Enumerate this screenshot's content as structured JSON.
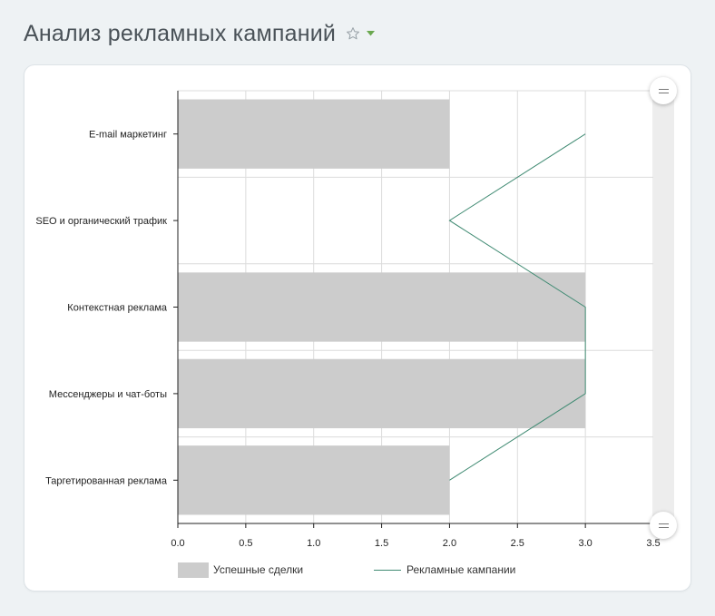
{
  "page": {
    "title": "Анализ рекламных кампаний",
    "star_icon": "star-outline-icon",
    "dropdown_icon": "chevron-down-icon",
    "accent_color": "#6aa84f"
  },
  "chart_data": {
    "type": "bar",
    "orientation": "horizontal",
    "title": "",
    "xlabel": "",
    "ylabel": "",
    "categories": [
      "E-mail маркетинг",
      "SEO и органический трафик",
      "Контекстная реклама",
      "Мессенджеры и чат-боты",
      "Таргетированная реклама"
    ],
    "series": [
      {
        "name": "Успешные сделки",
        "type": "bar",
        "color": "#cccccc",
        "values": [
          2,
          0,
          3,
          3,
          2
        ]
      },
      {
        "name": "Рекламные кампании",
        "type": "line",
        "color": "#3f8a72",
        "values": [
          3,
          2,
          3,
          3,
          2
        ]
      }
    ],
    "xlim": [
      0,
      3.5
    ],
    "xticks": [
      "0.0",
      "0.5",
      "1.0",
      "1.5",
      "2.0",
      "2.5",
      "3.0",
      "3.5"
    ],
    "grid": true,
    "legend_position": "bottom"
  }
}
